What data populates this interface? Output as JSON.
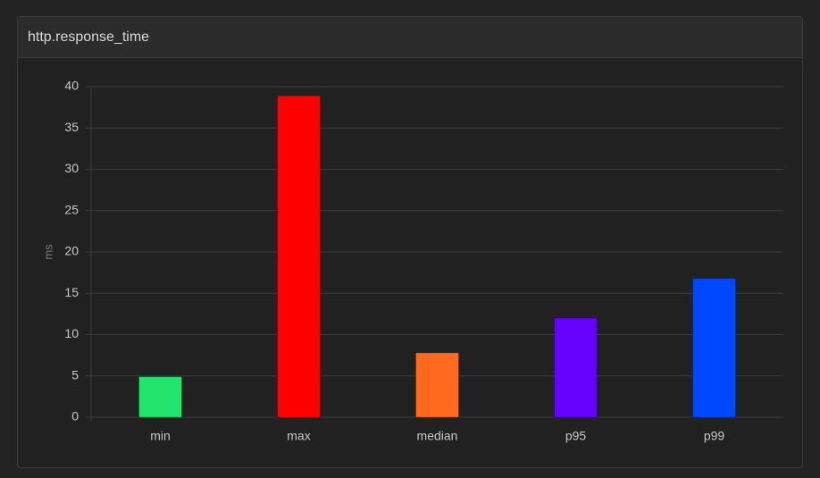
{
  "panel": {
    "title": "http.response_time"
  },
  "chart_data": {
    "type": "bar",
    "y_label": "ms",
    "categories": [
      "min",
      "max",
      "median",
      "p95",
      "p99"
    ],
    "values": [
      4.9,
      38.9,
      7.8,
      12.0,
      16.8
    ],
    "colors": [
      "#22e36b",
      "#ff0000",
      "#ff6a1f",
      "#6600ff",
      "#0048ff"
    ],
    "ylim": [
      0,
      40
    ],
    "yticks": [
      0,
      5,
      10,
      15,
      20,
      25,
      30,
      35,
      40
    ],
    "grid": true
  }
}
